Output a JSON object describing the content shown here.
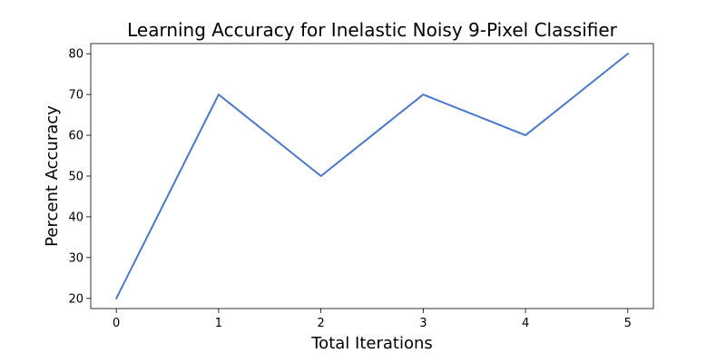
{
  "chart_data": {
    "type": "line",
    "title": "Learning Accuracy for Inelastic Noisy 9-Pixel Classifier",
    "xlabel": "Total Iterations",
    "ylabel": "Percent Accuracy",
    "x": [
      0,
      1,
      2,
      3,
      4,
      5
    ],
    "series": [
      {
        "values": [
          20,
          70,
          50,
          70,
          60,
          80
        ],
        "color": "#4878cf"
      }
    ],
    "xlim": [
      -0.25,
      5.25
    ],
    "ylim": [
      17.5,
      82.5
    ],
    "xticks": [
      0,
      1,
      2,
      3,
      4,
      5
    ],
    "yticks": [
      20,
      30,
      40,
      50,
      60,
      70,
      80
    ],
    "grid": false,
    "legend": "none"
  }
}
